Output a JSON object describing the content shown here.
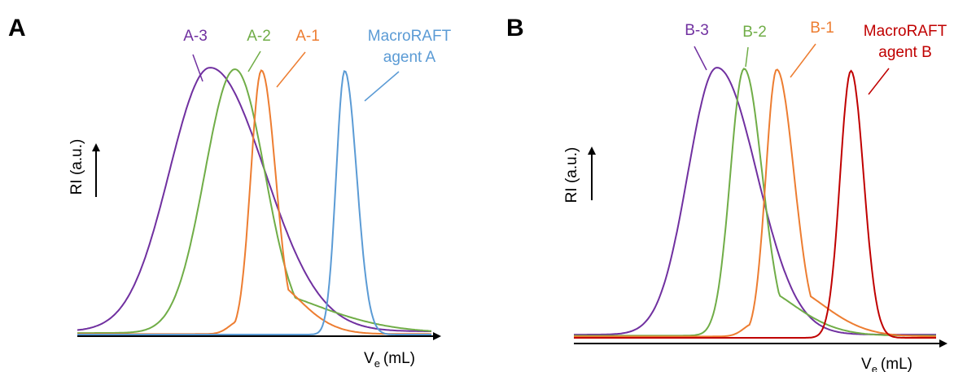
{
  "chart_data": [
    {
      "type": "line",
      "panel": "A",
      "xlabel_main": "V",
      "xlabel_sub": "e",
      "xlabel_unit": "(mL)",
      "ylabel": "RI (a.u.)",
      "grid": false,
      "series": [
        {
          "name": "A-3",
          "color": "#7030a0",
          "peak": 0.375,
          "wl": 0.115,
          "wr": 0.155,
          "shoulder": 0,
          "baseline": 0.012
        },
        {
          "name": "A-2",
          "color": "#70ad47",
          "peak": 0.445,
          "wl": 0.085,
          "wr": 0.085,
          "shoulder": 0.18,
          "baseline": 0.006
        },
        {
          "name": "A-1",
          "color": "#ed7d31",
          "peak": 0.52,
          "wl": 0.03,
          "wr": 0.04,
          "shoulder": 0.22,
          "baseline": 0.002
        },
        {
          "name": "MacroRAFT agent A",
          "color": "#5b9bd5",
          "peak": 0.755,
          "wl": 0.024,
          "wr": 0.034,
          "shoulder": 0,
          "baseline": 0.0
        }
      ],
      "labels": [
        {
          "line1": "A-3",
          "line2": "",
          "color": "#7030a0"
        },
        {
          "line1": "A-2",
          "line2": "",
          "color": "#70ad47"
        },
        {
          "line1": "A-1",
          "line2": "",
          "color": "#ed7d31"
        },
        {
          "line1": "MacroRAFT",
          "line2": "agent A",
          "color": "#5b9bd5"
        }
      ]
    },
    {
      "type": "line",
      "panel": "B",
      "xlabel_main": "V",
      "xlabel_sub": "e",
      "xlabel_unit": "(mL)",
      "ylabel": "RI (a.u.)",
      "grid": false,
      "series": [
        {
          "name": "B-3",
          "color": "#7030a0",
          "peak": 0.395,
          "wl": 0.08,
          "wr": 0.11,
          "shoulder": 0,
          "baseline": 0.012
        },
        {
          "name": "B-2",
          "color": "#70ad47",
          "peak": 0.47,
          "wl": 0.038,
          "wr": 0.05,
          "shoulder": 0.2,
          "baseline": 0.008
        },
        {
          "name": "B-1",
          "color": "#ed7d31",
          "peak": 0.56,
          "wl": 0.03,
          "wr": 0.048,
          "shoulder": 0.2,
          "baseline": 0.005
        },
        {
          "name": "MacroRAFT agent B",
          "color": "#c00000",
          "peak": 0.765,
          "wl": 0.03,
          "wr": 0.035,
          "shoulder": 0,
          "baseline": 0.0
        }
      ],
      "labels": [
        {
          "line1": "B-3",
          "line2": "",
          "color": "#7030a0"
        },
        {
          "line1": "B-2",
          "line2": "",
          "color": "#70ad47"
        },
        {
          "line1": "B-1",
          "line2": "",
          "color": "#ed7d31"
        },
        {
          "line1": "MacroRAFT",
          "line2": "agent B",
          "color": "#c00000"
        }
      ]
    }
  ]
}
